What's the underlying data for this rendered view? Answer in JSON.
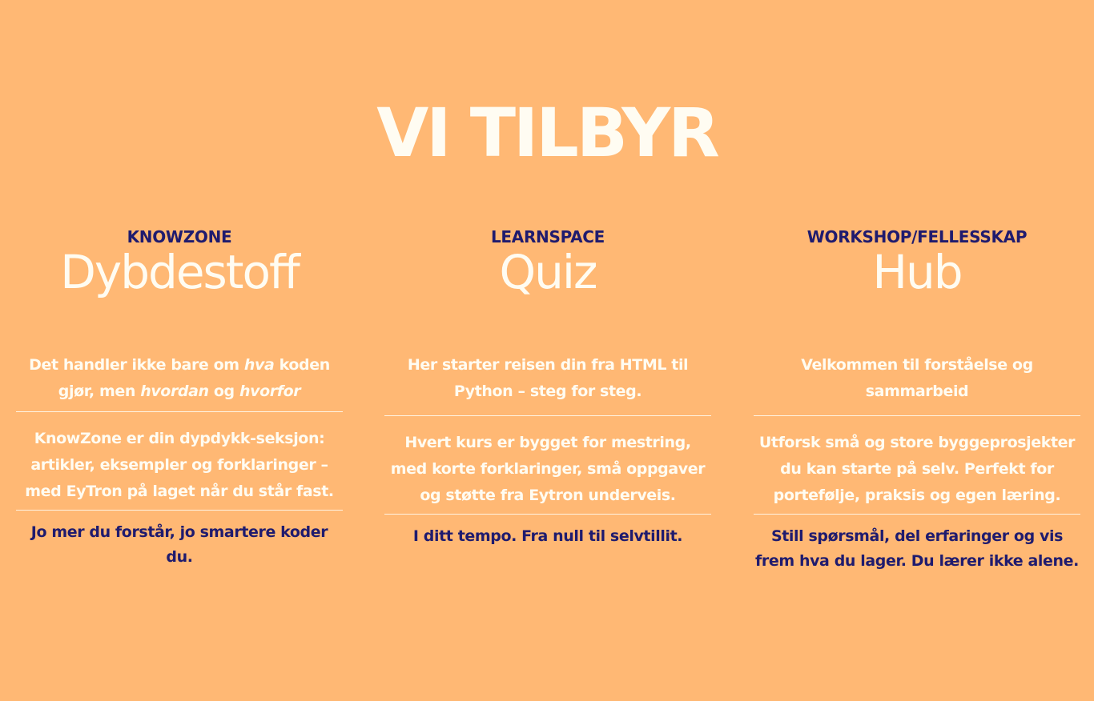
{
  "title": "VI TILBYR",
  "colors": {
    "background": "#FFB874",
    "heading_text": "#FFFCF2",
    "accent_navy": "#1F1B6E",
    "divider": "#FFF3E2"
  },
  "columns": [
    {
      "kicker": "KNOWZONE",
      "heading": "Dybdestoff",
      "intro": {
        "part1": "Det handler ikke bare om ",
        "em1": "hva",
        "part2": " koden gjør, men ",
        "em2": "hvordan",
        "part3": " og ",
        "em3": "hvorfor"
      },
      "body": "KnowZone er din dypdykk-seksjon: artikler, eksempler og forklaringer – med EyTron på laget når du står fast.",
      "closing": "Jo mer du forstår, jo smartere koder du."
    },
    {
      "kicker": "LEARNSPACE",
      "heading": "Quiz",
      "intro": "Her starter reisen din fra HTML til Python – steg for steg.",
      "body": "Hvert kurs er bygget for mestring, med korte forklaringer, små oppgaver og støtte fra Eytron underveis.",
      "closing": "I ditt tempo. Fra null til selvtillit."
    },
    {
      "kicker": "WORKSHOP/FELLESSKAP",
      "heading": "Hub",
      "intro": "Velkommen til forståelse og sammarbeid",
      "body": "Utforsk små og store byggeprosjekter du kan starte på selv. Perfekt for portefølje, praksis og egen læring.",
      "closing": "Still spørsmål, del erfaringer og vis frem hva du lager. Du lærer ikke alene."
    }
  ]
}
